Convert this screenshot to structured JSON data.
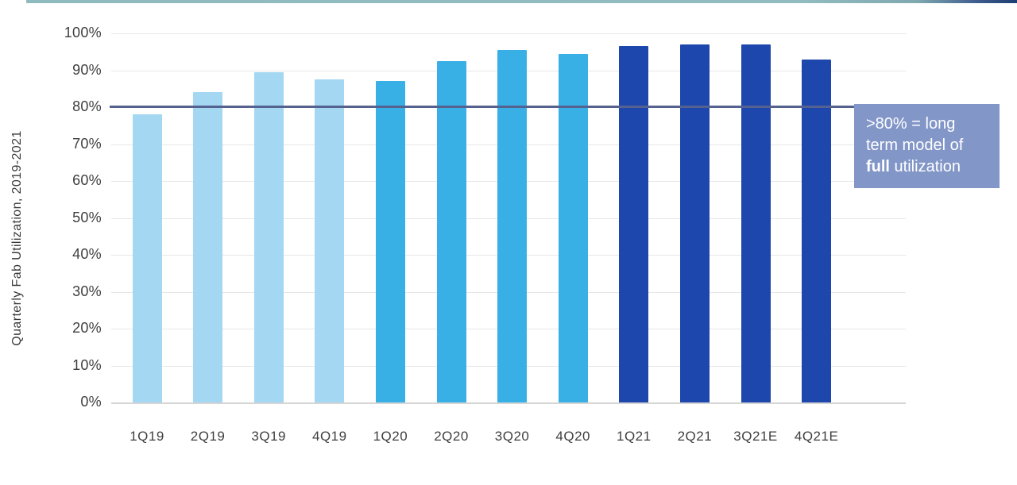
{
  "chart_data": {
    "type": "bar",
    "title": "",
    "xlabel": "",
    "ylabel": "Quarterly Fab Utilization, 2019-2021",
    "ylim": [
      0,
      100
    ],
    "yticks": [
      "0%",
      "10%",
      "20%",
      "30%",
      "40%",
      "50%",
      "60%",
      "70%",
      "80%",
      "90%",
      "100%"
    ],
    "grid": "horizontal",
    "legend": "none",
    "categories": [
      "1Q19",
      "2Q19",
      "3Q19",
      "4Q19",
      "1Q20",
      "2Q20",
      "3Q20",
      "4Q20",
      "1Q21",
      "2Q21",
      "3Q21E",
      "4Q21E"
    ],
    "values": [
      78,
      84,
      89.5,
      87.5,
      87,
      92.5,
      95.5,
      94.5,
      96.5,
      97,
      97,
      93
    ],
    "groups": [
      "2019",
      "2019",
      "2019",
      "2019",
      "2020",
      "2020",
      "2020",
      "2020",
      "2021",
      "2021",
      "2021",
      "2021"
    ],
    "palette": {
      "2019": "#a3d7f2",
      "2020": "#39b0e5",
      "2021": "#1d47ad"
    },
    "reference_line": {
      "value": 80,
      "color": "#55628f"
    },
    "annotation": {
      "line1": ">80% = long",
      "line2": "term model of",
      "line3_bold": "full",
      "line3_rest": " utilization",
      "bg_color": "#8296c8",
      "text_color": "#ffffff"
    },
    "top_rule_colors": {
      "left": "#8fbabe",
      "right": "#1d3e73"
    }
  }
}
